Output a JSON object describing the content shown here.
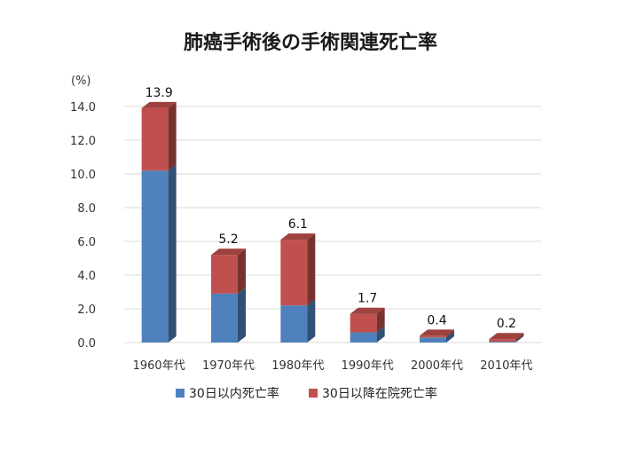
{
  "chart_data": {
    "type": "bar",
    "stacked": true,
    "title": "肺癌手術後の手術関連死亡率",
    "ylabel": "(%)",
    "xlabel": "",
    "ylim": [
      0,
      14
    ],
    "yticks": [
      "0.0",
      "2.0",
      "4.0",
      "6.0",
      "8.0",
      "10.0",
      "12.0",
      "14.0"
    ],
    "grid": true,
    "legend_position": "bottom",
    "categories": [
      "1960年代",
      "1970年代",
      "1980年代",
      "1990年代",
      "2000年代",
      "2010年代"
    ],
    "series": [
      {
        "name": "30日以内死亡率",
        "color": "#4f81bd",
        "values": [
          10.2,
          2.9,
          2.2,
          0.6,
          0.3,
          0.05
        ]
      },
      {
        "name": "30日以降在院死亡率",
        "color": "#c0504d",
        "values": [
          3.7,
          2.3,
          3.9,
          1.1,
          0.1,
          0.15
        ]
      }
    ],
    "totals": [
      "13.9",
      "5.2",
      "6.1",
      "1.7",
      "0.4",
      "0.2"
    ]
  }
}
